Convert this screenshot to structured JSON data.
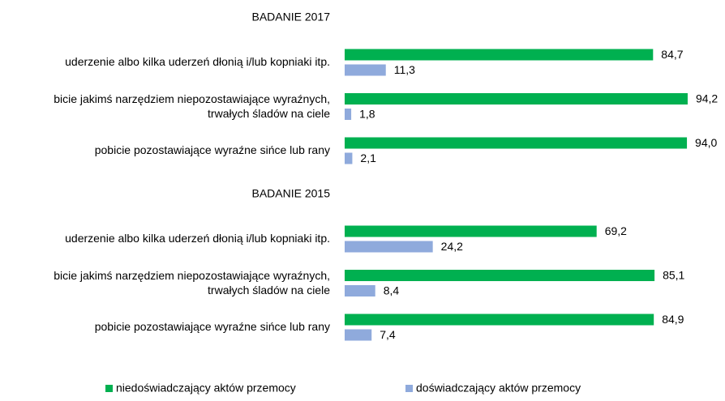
{
  "chart_data": {
    "type": "hbar",
    "categories": [
      "BADANIE 2017",
      "uderzenie albo kilka uderzeń dłonią i/lub kopniaki itp.",
      "bicie jakimś narzędziem niepozostawiające wyraźnych,\ntrwałych śladów na ciele",
      "pobicie pozostawiające wyraźne sińce lub rany",
      "BADANIE 2015",
      "uderzenie albo kilka uderzeń dłonią i/lub kopniaki itp.",
      "bicie jakimś narzędziem niepozostawiające wyraźnych,\ntrwałych śladów na ciele",
      "pobicie pozostawiające wyraźne sińce lub rany"
    ],
    "series": [
      {
        "name": "niedoświadczający aktów przemocy",
        "color": "#00b050",
        "values": [
          null,
          84.7,
          94.2,
          94.0,
          null,
          69.2,
          85.1,
          84.9
        ],
        "value_labels": [
          null,
          "84,7",
          "94,2",
          "94,0",
          null,
          "69,2",
          "85,1",
          "84,9"
        ]
      },
      {
        "name": "doświadczający aktów przemocy",
        "color": "#8faadc",
        "values": [
          null,
          11.3,
          1.8,
          2.1,
          null,
          24.2,
          8.4,
          7.4
        ],
        "value_labels": [
          null,
          "11,3",
          "1,8",
          "2,1",
          null,
          "24,2",
          "8,4",
          "7,4"
        ]
      }
    ],
    "xlim": [
      0,
      100
    ],
    "legend": "bottom"
  }
}
